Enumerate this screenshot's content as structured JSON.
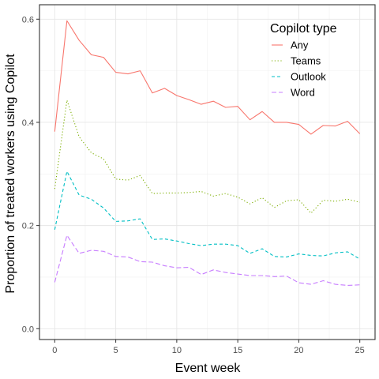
{
  "chart_data": {
    "type": "line",
    "title": "",
    "xlabel": "Event week",
    "ylabel": "Proportion of treated workers using Copilot",
    "xlim": [
      -1.25,
      26.25
    ],
    "ylim": [
      -0.021,
      0.628
    ],
    "x_ticks": [
      0,
      5,
      10,
      15,
      20,
      25
    ],
    "x_tick_labels": [
      "0",
      "5",
      "10",
      "15",
      "20",
      "25"
    ],
    "y_ticks": [
      0.0,
      0.2,
      0.4,
      0.6
    ],
    "y_tick_labels": [
      "0.0",
      "0.2",
      "0.4",
      "0.6"
    ],
    "grid": true,
    "legend": {
      "title": "Copilot type",
      "placement": "top-right"
    },
    "x": [
      0,
      1,
      2,
      3,
      4,
      5,
      6,
      7,
      8,
      9,
      10,
      11,
      12,
      13,
      14,
      15,
      16,
      17,
      18,
      19,
      20,
      21,
      22,
      23,
      24,
      25
    ],
    "series": [
      {
        "name": "Any",
        "color": "#F8766D",
        "dash": "solid",
        "values": [
          0.382,
          0.597,
          0.559,
          0.531,
          0.526,
          0.497,
          0.494,
          0.5,
          0.457,
          0.466,
          0.452,
          0.444,
          0.435,
          0.441,
          0.429,
          0.431,
          0.405,
          0.421,
          0.4,
          0.4,
          0.396,
          0.377,
          0.394,
          0.393,
          0.402,
          0.378
        ]
      },
      {
        "name": "Teams",
        "color": "#7CAE00",
        "dash": "dotted",
        "values": [
          0.271,
          0.443,
          0.372,
          0.341,
          0.329,
          0.29,
          0.288,
          0.297,
          0.262,
          0.263,
          0.263,
          0.264,
          0.266,
          0.257,
          0.262,
          0.255,
          0.242,
          0.254,
          0.235,
          0.248,
          0.25,
          0.224,
          0.249,
          0.247,
          0.251,
          0.245
        ]
      },
      {
        "name": "Outlook",
        "color": "#00BFC4",
        "dash": "dashed",
        "values": [
          0.192,
          0.305,
          0.259,
          0.251,
          0.234,
          0.208,
          0.209,
          0.213,
          0.173,
          0.174,
          0.17,
          0.165,
          0.161,
          0.164,
          0.164,
          0.161,
          0.146,
          0.155,
          0.14,
          0.139,
          0.145,
          0.142,
          0.141,
          0.147,
          0.149,
          0.135
        ]
      },
      {
        "name": "Word",
        "color": "#C77CFF",
        "dash": "long-dash",
        "values": [
          0.09,
          0.181,
          0.146,
          0.152,
          0.15,
          0.14,
          0.139,
          0.13,
          0.129,
          0.122,
          0.118,
          0.119,
          0.105,
          0.114,
          0.109,
          0.106,
          0.103,
          0.103,
          0.101,
          0.102,
          0.089,
          0.086,
          0.093,
          0.086,
          0.084,
          0.085
        ]
      }
    ]
  }
}
